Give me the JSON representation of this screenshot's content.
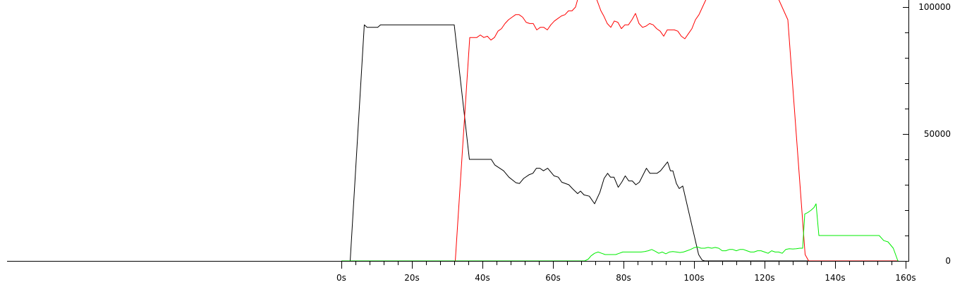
{
  "chart_data": {
    "type": "line",
    "title": "",
    "xlabel": "",
    "ylabel": "",
    "x_unit_suffix": "s",
    "xlim": [
      0,
      160
    ],
    "ylim": [
      0,
      100000
    ],
    "x_ticks": [
      0,
      20,
      40,
      60,
      80,
      100,
      120,
      140,
      160
    ],
    "x_tick_labels": [
      "0s",
      "20s",
      "40s",
      "60s",
      "80s",
      "100s",
      "120s",
      "140s",
      "160s"
    ],
    "y_ticks": [
      0,
      50000,
      100000
    ],
    "y_tick_labels": [
      "0",
      "50000",
      "100000"
    ],
    "grid": false,
    "legend": "none",
    "series": [
      {
        "color": "#000000",
        "points": [
          [
            0,
            0
          ],
          [
            2.5,
            0
          ],
          [
            6.5,
            93000
          ],
          [
            7.3,
            92000
          ],
          [
            10.3,
            92000
          ],
          [
            11.1,
            93000
          ],
          [
            32,
            93000
          ],
          [
            36.3,
            40000
          ],
          [
            42.5,
            40000
          ],
          [
            43.5,
            37800
          ],
          [
            46,
            35500
          ],
          [
            47.5,
            33000
          ],
          [
            49.5,
            30800
          ],
          [
            50.5,
            30500
          ],
          [
            51.7,
            32500
          ],
          [
            53.3,
            34000
          ],
          [
            54.3,
            34500
          ],
          [
            55.3,
            36500
          ],
          [
            56.3,
            36500
          ],
          [
            57.3,
            35500
          ],
          [
            58.5,
            36500
          ],
          [
            60.3,
            33500
          ],
          [
            61.5,
            33000
          ],
          [
            62.5,
            31000
          ],
          [
            64.5,
            30000
          ],
          [
            65.5,
            28500
          ],
          [
            67,
            26500
          ],
          [
            67.8,
            27500
          ],
          [
            68.8,
            26000
          ],
          [
            70.3,
            25500
          ],
          [
            71.8,
            22500
          ],
          [
            73.3,
            27000
          ],
          [
            74.5,
            32500
          ],
          [
            75.5,
            34500
          ],
          [
            76.3,
            33000
          ],
          [
            77.3,
            33000
          ],
          [
            78.5,
            29000
          ],
          [
            79.5,
            31000
          ],
          [
            80.5,
            33500
          ],
          [
            81.5,
            31500
          ],
          [
            82.5,
            31500
          ],
          [
            83.5,
            30000
          ],
          [
            84.5,
            31000
          ],
          [
            86.5,
            36500
          ],
          [
            87.5,
            34500
          ],
          [
            89.5,
            34500
          ],
          [
            90.5,
            35500
          ],
          [
            92.5,
            39000
          ],
          [
            93.3,
            35500
          ],
          [
            94,
            35500
          ],
          [
            95,
            30500
          ],
          [
            95.8,
            28500
          ],
          [
            96.8,
            29500
          ],
          [
            101.3,
            2500
          ],
          [
            102.3,
            300
          ],
          [
            103,
            0
          ],
          [
            158,
            0
          ]
        ]
      },
      {
        "color": "#ff0000",
        "points": [
          [
            0,
            0
          ],
          [
            32.3,
            0
          ],
          [
            36.4,
            88000
          ],
          [
            38.4,
            88000
          ],
          [
            39.4,
            89000
          ],
          [
            40.4,
            88000
          ],
          [
            41.4,
            88500
          ],
          [
            42.4,
            87000
          ],
          [
            43.4,
            88000
          ],
          [
            44.4,
            90500
          ],
          [
            45.4,
            91500
          ],
          [
            46.4,
            93500
          ],
          [
            47.4,
            95000
          ],
          [
            48.4,
            96000
          ],
          [
            49.4,
            97000
          ],
          [
            50.4,
            97000
          ],
          [
            51.4,
            96000
          ],
          [
            52.4,
            94000
          ],
          [
            53.4,
            93500
          ],
          [
            54.4,
            93500
          ],
          [
            55.4,
            91000
          ],
          [
            56.4,
            92000
          ],
          [
            57.4,
            92000
          ],
          [
            58.4,
            91000
          ],
          [
            59.4,
            93000
          ],
          [
            60.4,
            94500
          ],
          [
            61.4,
            95500
          ],
          [
            62.4,
            96500
          ],
          [
            63.4,
            97000
          ],
          [
            64.4,
            98500
          ],
          [
            65.4,
            98500
          ],
          [
            66.4,
            100000
          ],
          [
            67,
            103000
          ],
          [
            72.4,
            103000
          ],
          [
            73.2,
            100000
          ],
          [
            73.6,
            98500
          ],
          [
            74.4,
            96500
          ],
          [
            75.4,
            93500
          ],
          [
            76.4,
            92000
          ],
          [
            77.4,
            94500
          ],
          [
            78.4,
            94000
          ],
          [
            79.4,
            91500
          ],
          [
            80.4,
            93000
          ],
          [
            81.4,
            93000
          ],
          [
            82.4,
            95000
          ],
          [
            83.4,
            97500
          ],
          [
            84.4,
            93500
          ],
          [
            85.4,
            92000
          ],
          [
            86.4,
            92500
          ],
          [
            87.4,
            93500
          ],
          [
            88.4,
            93000
          ],
          [
            89.4,
            91500
          ],
          [
            90.4,
            90500
          ],
          [
            91.4,
            88500
          ],
          [
            92.4,
            91000
          ],
          [
            93.4,
            91000
          ],
          [
            94.4,
            91000
          ],
          [
            95.4,
            90500
          ],
          [
            96.4,
            88500
          ],
          [
            97.4,
            87500
          ],
          [
            98.4,
            89500
          ],
          [
            99.4,
            91500
          ],
          [
            100.4,
            95000
          ],
          [
            101.4,
            97000
          ],
          [
            102.4,
            100000
          ],
          [
            103.4,
            103000
          ],
          [
            124,
            103000
          ],
          [
            126.6,
            95000
          ],
          [
            131.5,
            2500
          ],
          [
            132.5,
            0
          ],
          [
            158,
            0
          ]
        ]
      },
      {
        "color": "#00ee00",
        "points": [
          [
            0,
            0
          ],
          [
            69,
            0
          ],
          [
            70,
            700
          ],
          [
            70.8,
            2000
          ],
          [
            71.8,
            3000
          ],
          [
            72.8,
            3500
          ],
          [
            73.8,
            3000
          ],
          [
            74.8,
            2500
          ],
          [
            75.8,
            2500
          ],
          [
            76.8,
            2500
          ],
          [
            77.8,
            2500
          ],
          [
            78.8,
            3000
          ],
          [
            79.8,
            3500
          ],
          [
            81,
            3500
          ],
          [
            82,
            3500
          ],
          [
            83,
            3500
          ],
          [
            84,
            3500
          ],
          [
            85,
            3500
          ],
          [
            86,
            3700
          ],
          [
            87,
            4000
          ],
          [
            88,
            4500
          ],
          [
            89,
            3800
          ],
          [
            90,
            3000
          ],
          [
            91,
            3500
          ],
          [
            92,
            2800
          ],
          [
            93,
            3500
          ],
          [
            94,
            3700
          ],
          [
            95,
            3500
          ],
          [
            96,
            3300
          ],
          [
            97,
            3500
          ],
          [
            98,
            4000
          ],
          [
            99,
            4500
          ],
          [
            100,
            5200
          ],
          [
            101,
            5500
          ],
          [
            102,
            5000
          ],
          [
            103,
            5000
          ],
          [
            104,
            5300
          ],
          [
            105,
            5000
          ],
          [
            106,
            5300
          ],
          [
            107,
            5000
          ],
          [
            108,
            4000
          ],
          [
            109,
            4000
          ],
          [
            110,
            4500
          ],
          [
            111,
            4500
          ],
          [
            112,
            4000
          ],
          [
            113,
            4500
          ],
          [
            114,
            4500
          ],
          [
            115,
            4000
          ],
          [
            116,
            3500
          ],
          [
            117,
            3500
          ],
          [
            118,
            4000
          ],
          [
            119,
            4000
          ],
          [
            120,
            3500
          ],
          [
            121,
            3000
          ],
          [
            122,
            4000
          ],
          [
            123,
            3500
          ],
          [
            124,
            3500
          ],
          [
            125,
            3000
          ],
          [
            126,
            4500
          ],
          [
            127,
            4800
          ],
          [
            128,
            4700
          ],
          [
            129,
            4800
          ],
          [
            130,
            5000
          ],
          [
            130.8,
            5000
          ],
          [
            131.4,
            18500
          ],
          [
            132.2,
            19000
          ],
          [
            133.2,
            20000
          ],
          [
            134,
            21000
          ],
          [
            134.6,
            22500
          ],
          [
            135.4,
            10000
          ],
          [
            152.5,
            10000
          ],
          [
            153.8,
            8000
          ],
          [
            155,
            7500
          ],
          [
            156.5,
            5000
          ],
          [
            157.8,
            0
          ],
          [
            158,
            0
          ]
        ]
      }
    ]
  }
}
